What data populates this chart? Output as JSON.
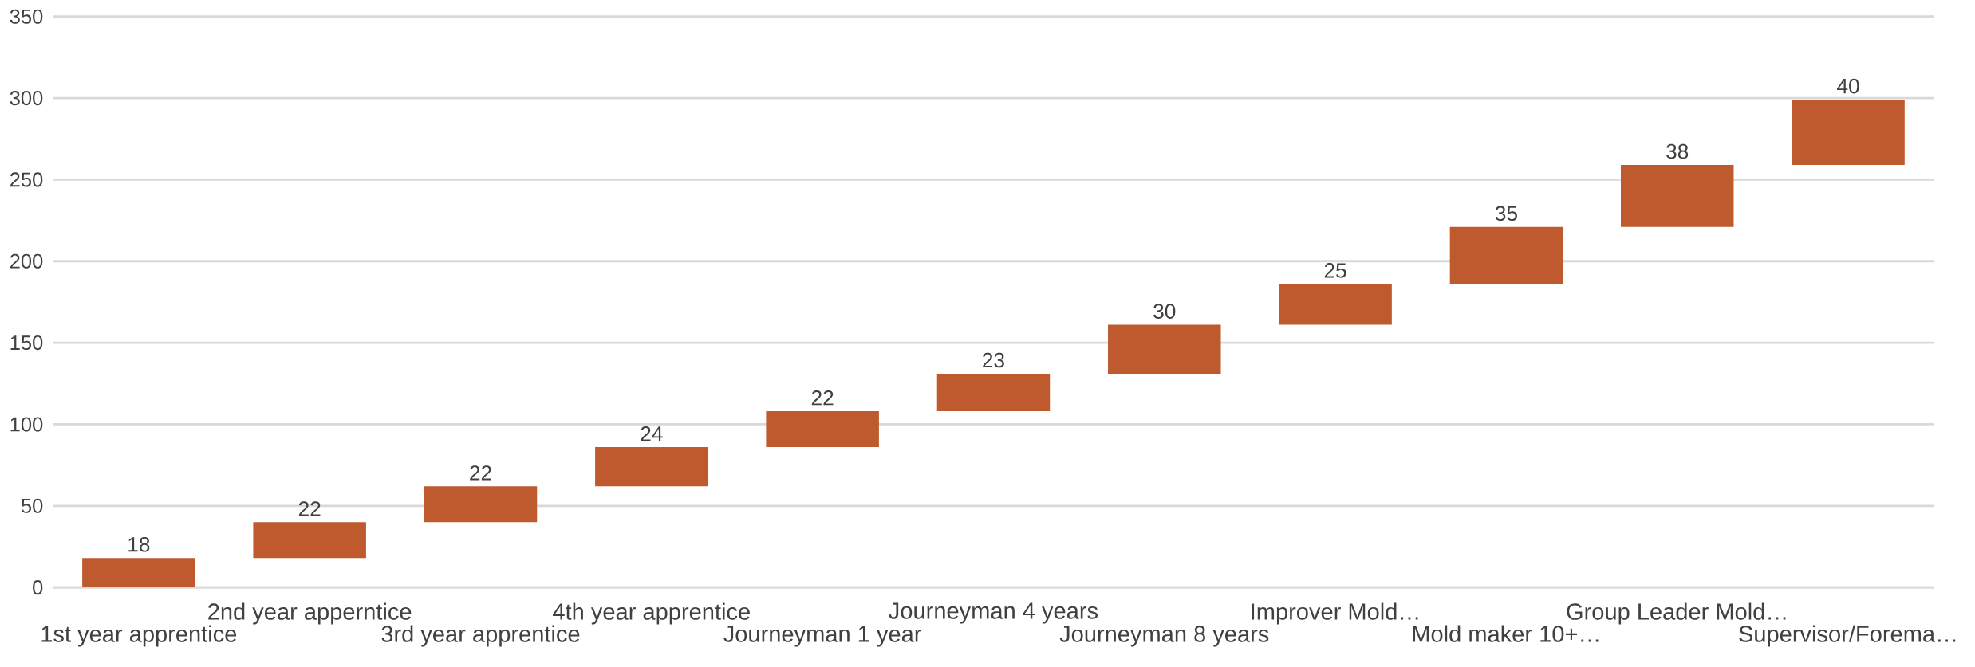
{
  "chart_data": {
    "type": "bar",
    "categories": [
      "1st year apprentice",
      "2nd year apperntice",
      "3rd year apprentice",
      "4th year apprentice",
      "Journeyman 1 year",
      "Journeyman 4 years",
      "Journeyman 8 years",
      "Improver Mold…",
      "Mold maker 10+…",
      "Group Leader Mold…",
      "Supervisor/Forema…"
    ],
    "values": [
      18,
      22,
      22,
      24,
      22,
      23,
      30,
      25,
      35,
      38,
      40
    ],
    "base": [
      0,
      18,
      40,
      62,
      86,
      108,
      131,
      161,
      186,
      221,
      259
    ],
    "color": "#be5a2e",
    "ylim": [
      0,
      350
    ],
    "yticks": [
      0,
      50,
      100,
      150,
      200,
      250,
      300,
      350
    ],
    "grid": "y",
    "data_labels": true
  }
}
